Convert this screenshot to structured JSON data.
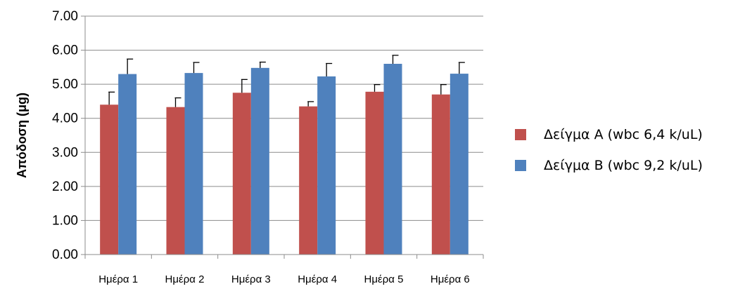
{
  "chart_data": {
    "type": "bar",
    "title": "",
    "xlabel": "",
    "ylabel": "Απόδοση (μg)",
    "categories": [
      "Ημέρα 1",
      "Ημέρα 2",
      "Ημέρα 3",
      "Ημέρα 4",
      "Ημέρα 5",
      "Ημέρα 6"
    ],
    "ylim": [
      0,
      7
    ],
    "yticks": [
      "0.00",
      "1.00",
      "2.00",
      "3.00",
      "4.00",
      "5.00",
      "6.00",
      "7.00"
    ],
    "grid": true,
    "legend_position": "right",
    "series": [
      {
        "name": "Δείγμα Α (wbc 6,4 k/uL)",
        "color": "#C0504D",
        "values": [
          4.4,
          4.33,
          4.75,
          4.35,
          4.78,
          4.7
        ],
        "error": [
          0.37,
          0.27,
          0.39,
          0.14,
          0.21,
          0.29
        ]
      },
      {
        "name": "Δείγμα Β (wbc 9,2 k/uL)",
        "color": "#4F81BD",
        "values": [
          5.3,
          5.33,
          5.48,
          5.23,
          5.6,
          5.31
        ],
        "error": [
          0.44,
          0.31,
          0.17,
          0.38,
          0.25,
          0.33
        ]
      }
    ]
  }
}
